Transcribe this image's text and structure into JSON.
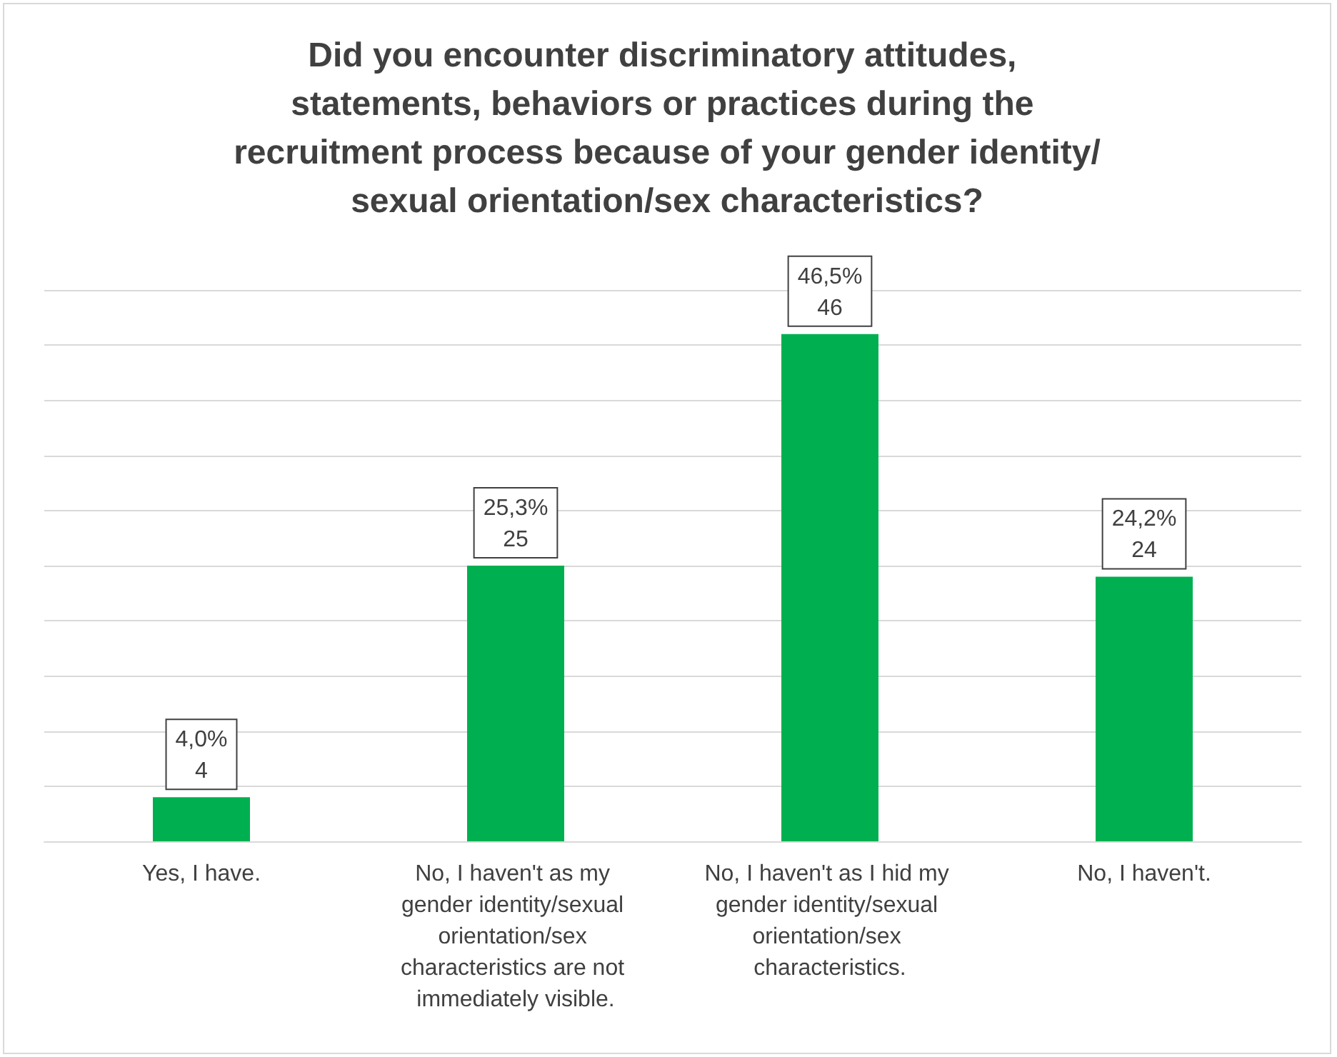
{
  "chart_data": {
    "type": "bar",
    "title": "Did you encounter discriminatory attitudes, statements, behaviors or practices during the recruitment process because of your gender identity/sexual orientation/sex characteristics?",
    "categories": [
      "Yes, I have.",
      "No, I haven't as my gender identity/sexual orientation/sex characteristics are not immediately visible.",
      "No, I haven't as I hid my gender identity/sexual orientation/sex characteristics.",
      "No, I haven't."
    ],
    "values": [
      4,
      25,
      46,
      24
    ],
    "value_labels": [
      "4,0%\n4",
      "25,3%\n25",
      "46,5%\n46",
      "24,2%\n24"
    ],
    "color": "#00b050",
    "ylim": [
      0,
      50
    ],
    "yticks": [
      {
        "value": 0,
        "label": null
      },
      {
        "value": 5,
        "label": null
      },
      {
        "value": 10,
        "label": null
      },
      {
        "value": 15,
        "label": null
      },
      {
        "value": 20,
        "label": null
      },
      {
        "value": 25,
        "label": null
      },
      {
        "value": 30,
        "label": null
      },
      {
        "value": 35,
        "label": null
      },
      {
        "value": 40,
        "label": null
      },
      {
        "value": 45,
        "label": null
      },
      {
        "value": 50,
        "label": null
      }
    ],
    "grid": "y",
    "tick_labels": "x"
  }
}
